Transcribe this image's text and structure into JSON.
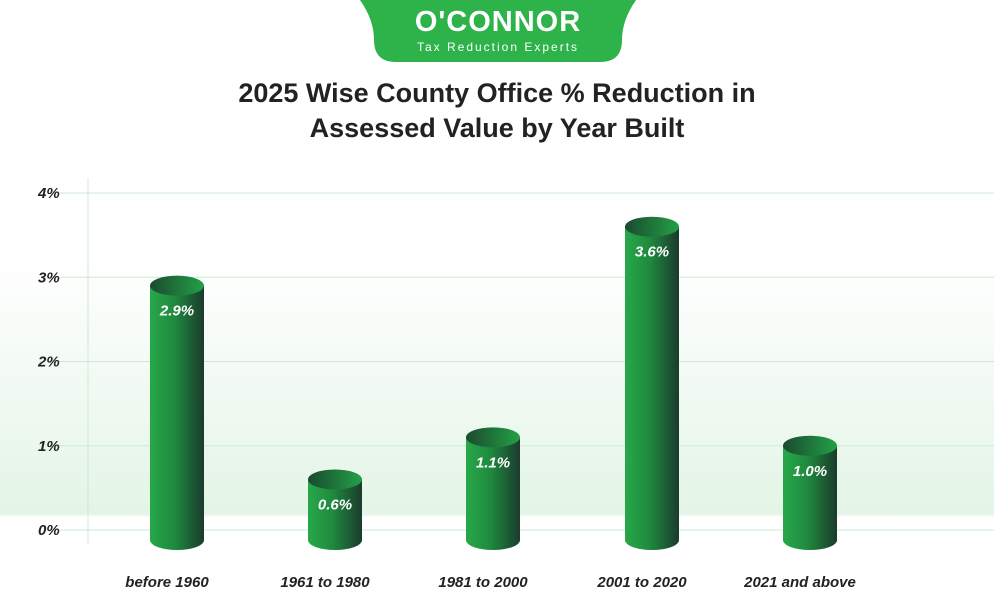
{
  "logo": {
    "name": "O'CONNOR",
    "tagline": "Tax Reduction Experts",
    "color": "#2db34a"
  },
  "chart_data": {
    "type": "bar",
    "title": "2025 Wise County Office % Reduction in Assessed Value by Year Built",
    "title_lines": [
      "2025 Wise County Office % Reduction in",
      "Assessed Value by Year Built"
    ],
    "categories": [
      "before 1960",
      "1961 to 1980",
      "1981 to 2000",
      "2001 to 2020",
      "2021 and above"
    ],
    "values": [
      2.9,
      0.6,
      1.1,
      3.6,
      1.0
    ],
    "data_labels": [
      "2.9%",
      "0.6%",
      "1.1%",
      "3.6%",
      "1.0%"
    ],
    "yticks": [
      "0%",
      "1%",
      "2%",
      "3%",
      "4%"
    ],
    "ylim": [
      0,
      4
    ],
    "xlabel": "",
    "ylabel": "",
    "grid": true,
    "bar_style": "cylinder",
    "colors": {
      "bar_light": "#27a84a",
      "bar_dark": "#1b3b2d",
      "grid": "#cfe8d5"
    }
  }
}
